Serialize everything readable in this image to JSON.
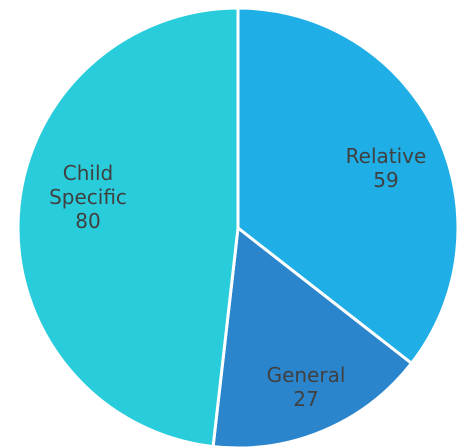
{
  "chart_data": {
    "type": "pie",
    "title": "",
    "slices": [
      {
        "label": [
          "Relative"
        ],
        "value": 59,
        "color": "#1FAEE6"
      },
      {
        "label": [
          "General"
        ],
        "value": 27,
        "color": "#2A85CC"
      },
      {
        "label": [
          "Child",
          "Specific"
        ],
        "value": 80,
        "color": "#29CCDA"
      }
    ],
    "legend": "none",
    "data_labels": "category-and-value-inside"
  }
}
